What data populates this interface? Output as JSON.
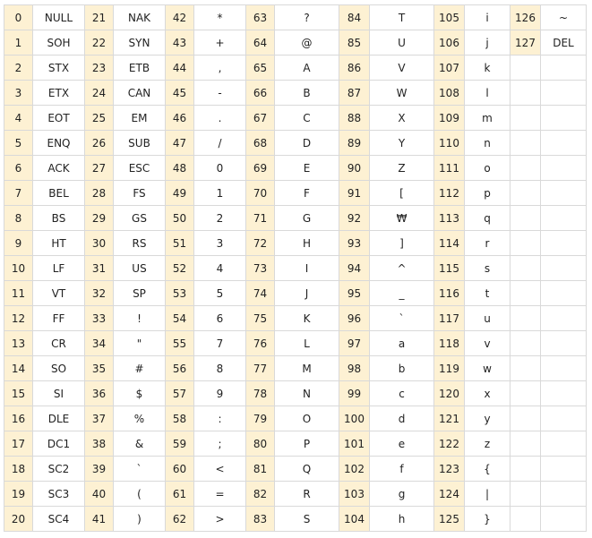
{
  "colors": {
    "code_cell_background": "#fdf1d3",
    "char_cell_background": "#ffffff",
    "grid_line": "#d9d9d9"
  },
  "columns": [
    {
      "entries": [
        {
          "code": "0",
          "char": "NULL"
        },
        {
          "code": "1",
          "char": "SOH"
        },
        {
          "code": "2",
          "char": "STX"
        },
        {
          "code": "3",
          "char": "ETX"
        },
        {
          "code": "4",
          "char": "EOT"
        },
        {
          "code": "5",
          "char": "ENQ"
        },
        {
          "code": "6",
          "char": "ACK"
        },
        {
          "code": "7",
          "char": "BEL"
        },
        {
          "code": "8",
          "char": "BS"
        },
        {
          "code": "9",
          "char": "HT"
        },
        {
          "code": "10",
          "char": "LF"
        },
        {
          "code": "11",
          "char": "VT"
        },
        {
          "code": "12",
          "char": "FF"
        },
        {
          "code": "13",
          "char": "CR"
        },
        {
          "code": "14",
          "char": "SO"
        },
        {
          "code": "15",
          "char": "SI"
        },
        {
          "code": "16",
          "char": "DLE"
        },
        {
          "code": "17",
          "char": "DC1"
        },
        {
          "code": "18",
          "char": "SC2"
        },
        {
          "code": "19",
          "char": "SC3"
        },
        {
          "code": "20",
          "char": "SC4"
        }
      ]
    },
    {
      "entries": [
        {
          "code": "21",
          "char": "NAK"
        },
        {
          "code": "22",
          "char": "SYN"
        },
        {
          "code": "23",
          "char": "ETB"
        },
        {
          "code": "24",
          "char": "CAN"
        },
        {
          "code": "25",
          "char": "EM"
        },
        {
          "code": "26",
          "char": "SUB"
        },
        {
          "code": "27",
          "char": "ESC"
        },
        {
          "code": "28",
          "char": "FS"
        },
        {
          "code": "29",
          "char": "GS"
        },
        {
          "code": "30",
          "char": "RS"
        },
        {
          "code": "31",
          "char": "US"
        },
        {
          "code": "32",
          "char": "SP"
        },
        {
          "code": "33",
          "char": "!"
        },
        {
          "code": "34",
          "char": "\""
        },
        {
          "code": "35",
          "char": "#"
        },
        {
          "code": "36",
          "char": "$"
        },
        {
          "code": "37",
          "char": "%"
        },
        {
          "code": "38",
          "char": "&"
        },
        {
          "code": "39",
          "char": "`"
        },
        {
          "code": "40",
          "char": "("
        },
        {
          "code": "41",
          "char": ")"
        }
      ]
    },
    {
      "entries": [
        {
          "code": "42",
          "char": "*"
        },
        {
          "code": "43",
          "char": "+"
        },
        {
          "code": "44",
          "char": ","
        },
        {
          "code": "45",
          "char": "-"
        },
        {
          "code": "46",
          "char": "."
        },
        {
          "code": "47",
          "char": "/"
        },
        {
          "code": "48",
          "char": "0"
        },
        {
          "code": "49",
          "char": "1"
        },
        {
          "code": "50",
          "char": "2"
        },
        {
          "code": "51",
          "char": "3"
        },
        {
          "code": "52",
          "char": "4"
        },
        {
          "code": "53",
          "char": "5"
        },
        {
          "code": "54",
          "char": "6"
        },
        {
          "code": "55",
          "char": "7"
        },
        {
          "code": "56",
          "char": "8"
        },
        {
          "code": "57",
          "char": "9"
        },
        {
          "code": "58",
          "char": ":"
        },
        {
          "code": "59",
          "char": ";"
        },
        {
          "code": "60",
          "char": "<"
        },
        {
          "code": "61",
          "char": "="
        },
        {
          "code": "62",
          "char": ">"
        }
      ]
    },
    {
      "entries": [
        {
          "code": "63",
          "char": "?"
        },
        {
          "code": "64",
          "char": "@"
        },
        {
          "code": "65",
          "char": "A"
        },
        {
          "code": "66",
          "char": "B"
        },
        {
          "code": "67",
          "char": "C"
        },
        {
          "code": "68",
          "char": "D"
        },
        {
          "code": "69",
          "char": "E"
        },
        {
          "code": "70",
          "char": "F"
        },
        {
          "code": "71",
          "char": "G"
        },
        {
          "code": "72",
          "char": "H"
        },
        {
          "code": "73",
          "char": "I"
        },
        {
          "code": "74",
          "char": "J"
        },
        {
          "code": "75",
          "char": "K"
        },
        {
          "code": "76",
          "char": "L"
        },
        {
          "code": "77",
          "char": "M"
        },
        {
          "code": "78",
          "char": "N"
        },
        {
          "code": "79",
          "char": "O"
        },
        {
          "code": "80",
          "char": "P"
        },
        {
          "code": "81",
          "char": "Q"
        },
        {
          "code": "82",
          "char": "R"
        },
        {
          "code": "83",
          "char": "S"
        }
      ]
    },
    {
      "entries": [
        {
          "code": "84",
          "char": "T"
        },
        {
          "code": "85",
          "char": "U"
        },
        {
          "code": "86",
          "char": "V"
        },
        {
          "code": "87",
          "char": "W"
        },
        {
          "code": "88",
          "char": "X"
        },
        {
          "code": "89",
          "char": "Y"
        },
        {
          "code": "90",
          "char": "Z"
        },
        {
          "code": "91",
          "char": "["
        },
        {
          "code": "92",
          "char": "₩"
        },
        {
          "code": "93",
          "char": "]"
        },
        {
          "code": "94",
          "char": "^"
        },
        {
          "code": "95",
          "char": "_"
        },
        {
          "code": "96",
          "char": "`"
        },
        {
          "code": "97",
          "char": "a"
        },
        {
          "code": "98",
          "char": "b"
        },
        {
          "code": "99",
          "char": "c"
        },
        {
          "code": "100",
          "char": "d"
        },
        {
          "code": "101",
          "char": "e"
        },
        {
          "code": "102",
          "char": "f"
        },
        {
          "code": "103",
          "char": "g"
        },
        {
          "code": "104",
          "char": "h"
        }
      ]
    },
    {
      "entries": [
        {
          "code": "105",
          "char": "i"
        },
        {
          "code": "106",
          "char": "j"
        },
        {
          "code": "107",
          "char": "k"
        },
        {
          "code": "108",
          "char": "l"
        },
        {
          "code": "109",
          "char": "m"
        },
        {
          "code": "110",
          "char": "n"
        },
        {
          "code": "111",
          "char": "o"
        },
        {
          "code": "112",
          "char": "p"
        },
        {
          "code": "113",
          "char": "q"
        },
        {
          "code": "114",
          "char": "r"
        },
        {
          "code": "115",
          "char": "s"
        },
        {
          "code": "116",
          "char": "t"
        },
        {
          "code": "117",
          "char": "u"
        },
        {
          "code": "118",
          "char": "v"
        },
        {
          "code": "119",
          "char": "w"
        },
        {
          "code": "120",
          "char": "x"
        },
        {
          "code": "121",
          "char": "y"
        },
        {
          "code": "122",
          "char": "z"
        },
        {
          "code": "123",
          "char": "{"
        },
        {
          "code": "124",
          "char": "|"
        },
        {
          "code": "125",
          "char": "}"
        }
      ]
    },
    {
      "entries": [
        {
          "code": "126",
          "char": "~"
        },
        {
          "code": "127",
          "char": "DEL"
        }
      ]
    }
  ]
}
